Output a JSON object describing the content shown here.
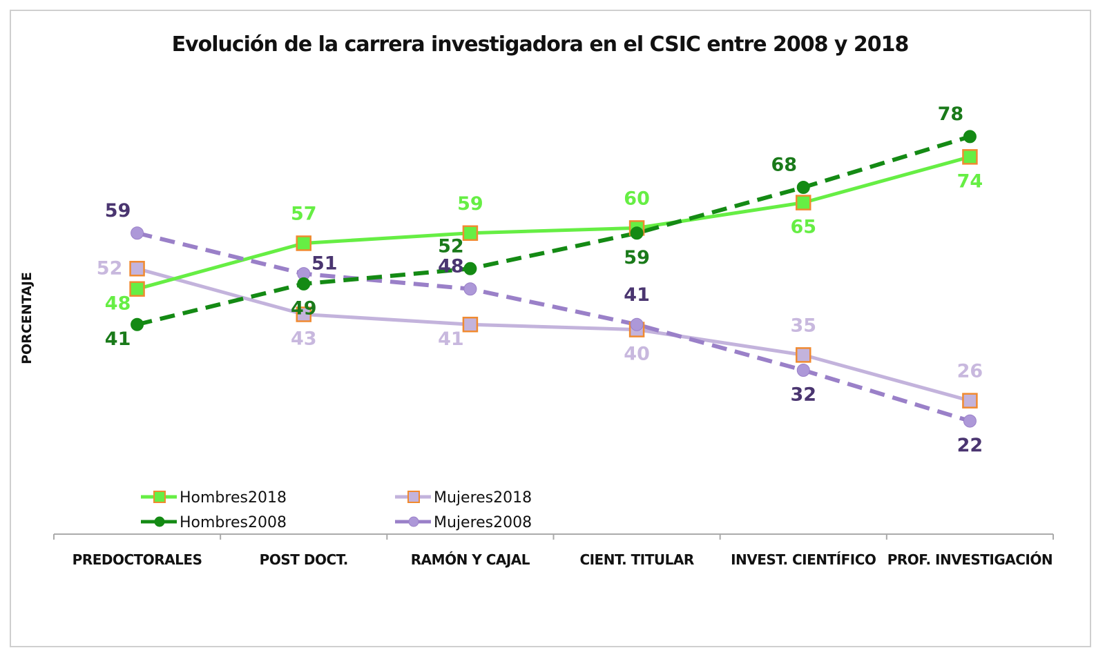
{
  "chart_data": {
    "type": "line",
    "title": "Evolución de la carrera investigadora en el CSIC entre 2008 y 2018",
    "xlabel": "",
    "ylabel": "PORCENTAJE",
    "ylim": [
      0,
      100
    ],
    "grid": false,
    "legend_position": "bottom-left",
    "categories": [
      "PREDOCTORALES",
      "POST DOCT.",
      "RAMÓN Y CAJAL",
      "CIENT. TITULAR",
      "INVEST. CIENTÍFICO",
      "PROF. INVESTIGACIÓN"
    ],
    "series": [
      {
        "name": "Hombres2018",
        "values": [
          48,
          57,
          59,
          60,
          65,
          74
        ],
        "color": "#66ee44",
        "marker": "square",
        "marker_fill": "#66ee44",
        "marker_stroke": "#f08a30",
        "line_style": "solid",
        "label_color": "#66ee44",
        "label_positions": [
          "below-left",
          "above",
          "above",
          "above",
          "below",
          "below"
        ]
      },
      {
        "name": "Hombres2008",
        "values": [
          41,
          49,
          52,
          59,
          68,
          78
        ],
        "color": "#148a14",
        "marker": "circle",
        "marker_fill": "#148a14",
        "marker_stroke": "#148a14",
        "line_style": "dashed",
        "label_color": "#1a7a1a",
        "label_positions": [
          "below-left",
          "below",
          "above-left",
          "below",
          "above-left",
          "above-left"
        ]
      },
      {
        "name": "Mujeres2018",
        "values": [
          52,
          43,
          41,
          40,
          35,
          26
        ],
        "color": "#c3b3dc",
        "marker": "square",
        "marker_fill": "#c3b3dc",
        "marker_stroke": "#f08a30",
        "line_style": "solid",
        "label_color": "#c8b8de",
        "label_positions": [
          "left",
          "below",
          "below-left",
          "below",
          "above",
          "above"
        ]
      },
      {
        "name": "Mujeres2008",
        "values": [
          59,
          51,
          48,
          41,
          32,
          22
        ],
        "color": "#9a80c8",
        "marker": "circle",
        "marker_fill": "#ad98d8",
        "marker_stroke": "#9a80c8",
        "line_style": "dashed",
        "label_color": "#4a3570",
        "label_positions": [
          "above-left",
          "above-right",
          "above-left",
          "above",
          "below",
          "below"
        ]
      }
    ]
  }
}
